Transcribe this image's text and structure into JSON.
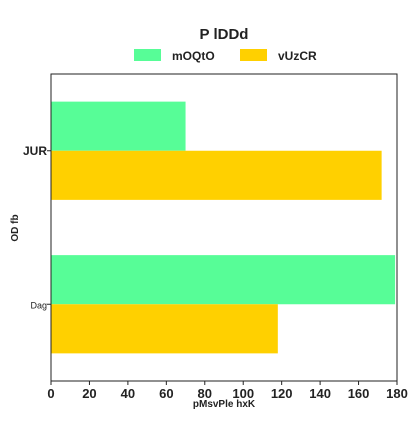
{
  "chart_data": {
    "type": "bar",
    "orientation": "horizontal",
    "title": "P lDDd",
    "xlabel": "pMsvPle hxK",
    "ylabel": "OD fb",
    "categories": [
      "JUR",
      "Dag"
    ],
    "series": [
      {
        "name": "mOQtO",
        "values": [
          70,
          179
        ],
        "color": "#57fd97"
      },
      {
        "name": "vUzCR",
        "values": [
          172,
          118
        ],
        "color": "#ffd000"
      }
    ],
    "xlim": [
      0,
      180
    ],
    "xticks": [
      0,
      20,
      40,
      60,
      80,
      100,
      120,
      140,
      160,
      180
    ],
    "grid": false,
    "legend_position": "top-center"
  }
}
